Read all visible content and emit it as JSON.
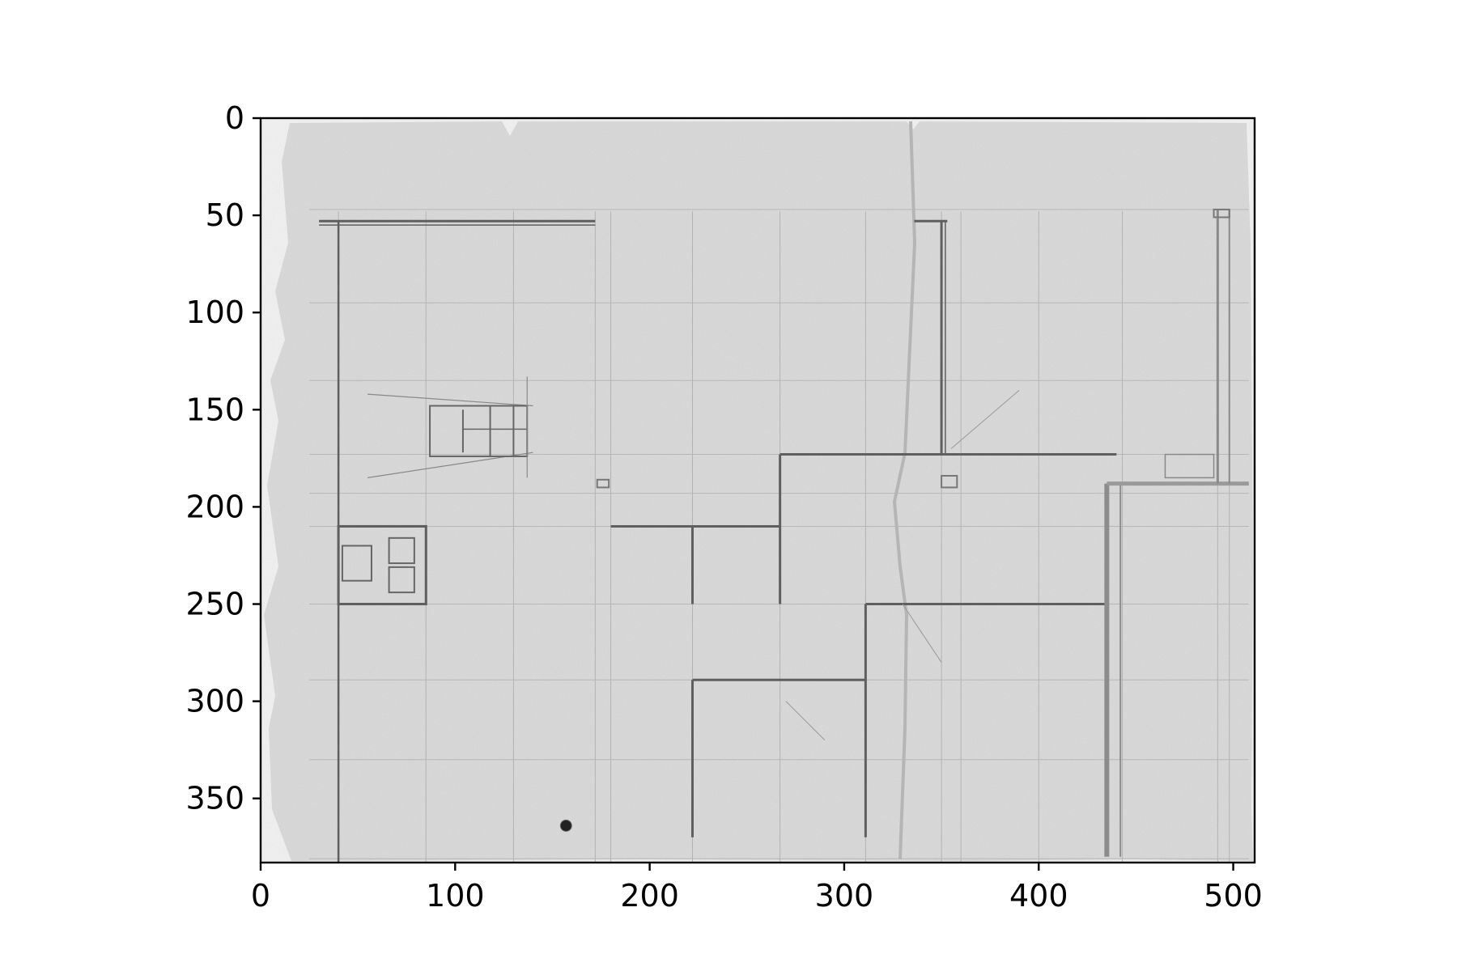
{
  "figure": {
    "description_type": "image-plot",
    "subject": "faded pencil architectural floor-plan sketch on aged paper, shown in grayscale",
    "image_extent": {
      "x": [
        0,
        511
      ],
      "y": [
        0,
        383
      ]
    },
    "colors": {
      "paper": "#d9d9d9",
      "edge_paper": "#ececec",
      "pencil": "#5c5c5c",
      "faint_pencil": "#a9a9a9",
      "axes": "#000000"
    }
  },
  "chart_data": {
    "type": "heatmap",
    "x_ticks": [
      0,
      100,
      200,
      300,
      400,
      500
    ],
    "y_ticks": [
      0,
      50,
      100,
      150,
      200,
      250,
      300,
      350
    ],
    "xlim": [
      0,
      511
    ],
    "ylim": [
      383,
      0
    ],
    "y_axis_inverted": true,
    "grid": false,
    "legend": "none",
    "title": "",
    "xlabel": "",
    "ylabel": ""
  }
}
